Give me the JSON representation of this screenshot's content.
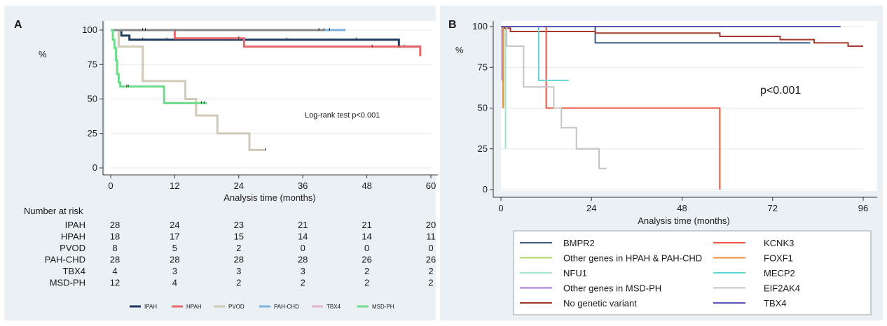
{
  "colors": {
    "panel_bg": "#eaf0f3",
    "IPAH": "#1f3a5f",
    "HPAH": "#e8676a",
    "PVOD": "#cfcab8",
    "PAH-CHD": "#7fb2de",
    "TBX4_A": "#e3b3cf",
    "MSD-PH": "#6fdc8c",
    "BMPR2": "#3f5f86",
    "Other genes in HPAH & PAH-CHD": "#a9d86a",
    "NFU1": "#a6e3cf",
    "Other genes in MSD-PH": "#a07ad6",
    "No genetic variant": "#a33a2a",
    "KCNK3": "#e8523f",
    "FOXF1": "#f08a3a",
    "MECP2": "#63d5d5",
    "EIF2AK4": "#c4c4c4",
    "TBX4_B": "#5a52b8"
  },
  "chart_data": [
    {
      "panel": "A",
      "type": "line",
      "step": true,
      "xlabel": "Analysis time (months)",
      "ylabel": "%",
      "xlim": [
        0,
        60
      ],
      "ylim": [
        0,
        100
      ],
      "xticks": [
        "0",
        "12",
        "24",
        "36",
        "48",
        "60"
      ],
      "yticks": [
        "0",
        "25",
        "50",
        "75",
        "100"
      ],
      "annotation": "Log-rank test p<0.001",
      "legend_position": "bottom",
      "series": [
        {
          "name": "IPAH",
          "points": [
            [
              0,
              100
            ],
            [
              2,
              100
            ],
            [
              2,
              96
            ],
            [
              3.5,
              96
            ],
            [
              3.5,
              93
            ],
            [
              54,
              93
            ],
            [
              54,
              88
            ],
            [
              58,
              88
            ]
          ],
          "censors": [
            [
              6,
              93
            ],
            [
              10.5,
              93
            ],
            [
              22,
              93
            ],
            [
              33,
              93
            ],
            [
              46,
              93
            ],
            [
              55,
              88
            ]
          ]
        },
        {
          "name": "HPAH",
          "points": [
            [
              0,
              100
            ],
            [
              12,
              100
            ],
            [
              12,
              94
            ],
            [
              25,
              94
            ],
            [
              25,
              88
            ],
            [
              58,
              88
            ],
            [
              58,
              81
            ]
          ],
          "censors": [
            [
              24,
              94
            ],
            [
              49,
              88
            ],
            [
              54,
              88
            ]
          ]
        },
        {
          "name": "PVOD",
          "points": [
            [
              0,
              100
            ],
            [
              1.5,
              100
            ],
            [
              1.5,
              88
            ],
            [
              6,
              88
            ],
            [
              6,
              63
            ],
            [
              14,
              63
            ],
            [
              14,
              50
            ],
            [
              16,
              50
            ],
            [
              16,
              38
            ],
            [
              20,
              38
            ],
            [
              20,
              25
            ],
            [
              26,
              25
            ],
            [
              26,
              13
            ],
            [
              29,
              13
            ]
          ],
          "censors": [
            [
              29,
              13
            ]
          ]
        },
        {
          "name": "PAH-CHD",
          "points": [
            [
              0,
              100
            ],
            [
              44,
              100
            ]
          ],
          "censors": [
            [
              40,
              100
            ],
            [
              41,
              100
            ]
          ]
        },
        {
          "name": "TBX4",
          "points": [
            [
              0,
              100
            ],
            [
              40,
              100
            ]
          ],
          "censors": [
            [
              6,
              100
            ],
            [
              6.5,
              100
            ],
            [
              39,
              100
            ]
          ]
        },
        {
          "name": "MSD-PH",
          "points": [
            [
              0,
              100
            ],
            [
              0.4,
              100
            ],
            [
              0.4,
              93
            ],
            [
              0.7,
              93
            ],
            [
              0.7,
              87
            ],
            [
              1,
              87
            ],
            [
              1,
              78
            ],
            [
              1.2,
              78
            ],
            [
              1.2,
              68
            ],
            [
              1.5,
              68
            ],
            [
              1.5,
              62
            ],
            [
              1.8,
              62
            ],
            [
              1.8,
              59
            ],
            [
              10,
              59
            ],
            [
              10,
              47
            ],
            [
              18,
              47
            ]
          ],
          "censors": [
            [
              3,
              59
            ],
            [
              3.3,
              59
            ],
            [
              17,
              47
            ],
            [
              17.5,
              47
            ]
          ]
        }
      ],
      "risk_table": {
        "label": "Number at risk",
        "rows": [
          {
            "group": "IPAH",
            "values": [
              "28",
              "24",
              "23",
              "21",
              "21",
              "20"
            ]
          },
          {
            "group": "HPAH",
            "values": [
              "18",
              "17",
              "15",
              "14",
              "14",
              "11"
            ]
          },
          {
            "group": "PVOD",
            "values": [
              "8",
              "5",
              "2",
              "0",
              "0",
              "0"
            ]
          },
          {
            "group": "PAH-CHD",
            "values": [
              "28",
              "28",
              "28",
              "28",
              "26",
              "26"
            ]
          },
          {
            "group": "TBX4",
            "values": [
              "4",
              "3",
              "3",
              "3",
              "2",
              "2"
            ]
          },
          {
            "group": "MSD-PH",
            "values": [
              "12",
              "4",
              "2",
              "2",
              "2",
              "2"
            ]
          }
        ]
      },
      "legend": [
        {
          "label": "IPAH",
          "color_key": "IPAH"
        },
        {
          "label": "HPAH",
          "color_key": "HPAH"
        },
        {
          "label": "PVOD",
          "color_key": "PVOD"
        },
        {
          "label": "PAH-CHD",
          "color_key": "PAH-CHD"
        },
        {
          "label": "TBX4",
          "color_key": "TBX4_A"
        },
        {
          "label": "MSD-PH",
          "color_key": "MSD-PH"
        }
      ]
    },
    {
      "panel": "B",
      "type": "line",
      "step": true,
      "xlabel": "Analysis time (months)",
      "ylabel": "%",
      "xlim": [
        0,
        96
      ],
      "ylim": [
        0,
        100
      ],
      "xticks": [
        "0",
        "24",
        "48",
        "72",
        "96"
      ],
      "yticks": [
        "0",
        "25",
        "50",
        "75",
        "100"
      ],
      "annotation": "p<0.001",
      "legend_position": "bottom",
      "series": [
        {
          "name": "BMPR2",
          "color_key": "BMPR2",
          "points": [
            [
              0,
              100
            ],
            [
              25,
              100
            ],
            [
              25,
              90
            ],
            [
              82,
              90
            ]
          ]
        },
        {
          "name": "Other genes in HPAH & PAH-CHD",
          "color_key": "Other genes in HPAH & PAH-CHD",
          "points": [
            [
              0,
              100
            ],
            [
              0.7,
              100
            ],
            [
              0.7,
              50
            ]
          ]
        },
        {
          "name": "NFU1",
          "color_key": "NFU1",
          "points": [
            [
              0,
              100
            ],
            [
              1.2,
              100
            ],
            [
              1.2,
              25
            ]
          ]
        },
        {
          "name": "Other genes in MSD-PH",
          "color_key": "Other genes in MSD-PH",
          "points": [
            [
              0,
              100
            ],
            [
              0.3,
              100
            ],
            [
              0.3,
              67
            ]
          ]
        },
        {
          "name": "No genetic variant",
          "color_key": "No genetic variant",
          "points": [
            [
              0,
              100
            ],
            [
              1,
              100
            ],
            [
              1,
              99
            ],
            [
              2.5,
              99
            ],
            [
              2.5,
              97
            ],
            [
              25,
              97
            ],
            [
              25,
              96
            ],
            [
              58,
              96
            ],
            [
              58,
              94
            ],
            [
              74,
              94
            ],
            [
              74,
              92
            ],
            [
              83,
              92
            ],
            [
              83,
              90
            ],
            [
              92,
              90
            ],
            [
              92,
              88
            ],
            [
              96,
              88
            ]
          ]
        },
        {
          "name": "KCNK3",
          "color_key": "KCNK3",
          "points": [
            [
              0,
              100
            ],
            [
              12,
              100
            ],
            [
              12,
              50
            ],
            [
              58,
              50
            ],
            [
              58,
              0
            ]
          ]
        },
        {
          "name": "FOXF1",
          "color_key": "FOXF1",
          "points": [
            [
              0,
              100
            ],
            [
              0.5,
              100
            ],
            [
              0.5,
              50
            ]
          ]
        },
        {
          "name": "MECP2",
          "color_key": "MECP2",
          "points": [
            [
              0,
              100
            ],
            [
              10,
              100
            ],
            [
              10,
              67
            ],
            [
              18,
              67
            ]
          ]
        },
        {
          "name": "EIF2AK4",
          "color_key": "EIF2AK4",
          "points": [
            [
              0,
              100
            ],
            [
              1.5,
              100
            ],
            [
              1.5,
              88
            ],
            [
              6,
              88
            ],
            [
              6,
              63
            ],
            [
              14,
              63
            ],
            [
              14,
              50
            ],
            [
              16,
              50
            ],
            [
              16,
              38
            ],
            [
              20,
              38
            ],
            [
              20,
              25
            ],
            [
              26,
              25
            ],
            [
              26,
              13
            ],
            [
              28,
              13
            ]
          ]
        },
        {
          "name": "TBX4",
          "color_key": "TBX4_B",
          "points": [
            [
              0,
              100
            ],
            [
              90,
              100
            ]
          ]
        }
      ],
      "legend": [
        {
          "label": "BMPR2",
          "color_key": "BMPR2"
        },
        {
          "label": "KCNK3",
          "color_key": "KCNK3"
        },
        {
          "label": "Other genes in HPAH & PAH-CHD",
          "color_key": "Other genes in HPAH & PAH-CHD"
        },
        {
          "label": "FOXF1",
          "color_key": "FOXF1"
        },
        {
          "label": "NFU1",
          "color_key": "NFU1"
        },
        {
          "label": "MECP2",
          "color_key": "MECP2"
        },
        {
          "label": "Other genes in MSD-PH",
          "color_key": "Other genes in MSD-PH"
        },
        {
          "label": "EIF2AK4",
          "color_key": "EIF2AK4"
        },
        {
          "label": "No genetic variant",
          "color_key": "No genetic variant"
        },
        {
          "label": "TBX4",
          "color_key": "TBX4_B"
        }
      ]
    }
  ]
}
